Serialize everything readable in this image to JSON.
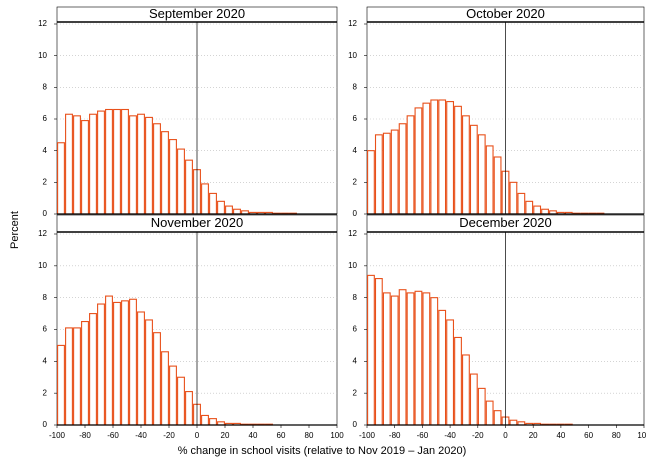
{
  "ylabel": "Percent",
  "xlabel": "% change in school visits (relative to Nov 2019 – Jan 2020)",
  "chart_data": [
    {
      "type": "histogram",
      "title": "September 2020",
      "color": "#e8501a",
      "grid": true,
      "vline": 0,
      "bins": [
        -100,
        -94.29,
        -88.57,
        -82.86,
        -77.14,
        -71.43,
        -65.71,
        -60,
        -54.29,
        -48.57,
        -42.86,
        -37.14,
        -31.43,
        -25.71,
        -20,
        -14.29,
        -8.57,
        -2.86,
        2.86,
        8.57,
        14.29,
        20,
        25.71,
        31.43,
        37.14,
        42.86,
        48.57,
        54.29,
        60,
        65.71,
        71.43,
        77.14,
        82.86,
        88.57,
        94.29,
        100
      ],
      "values": [
        4.5,
        6.3,
        6.2,
        5.9,
        6.3,
        6.5,
        6.6,
        6.6,
        6.6,
        6.2,
        6.3,
        6.1,
        5.7,
        5.2,
        4.7,
        4.1,
        3.4,
        2.8,
        1.9,
        1.3,
        0.8,
        0.5,
        0.3,
        0.2,
        0.1,
        0.1,
        0.1,
        0.05,
        0.05,
        0.05,
        0,
        0,
        0,
        0,
        0
      ],
      "xlim": [
        -100,
        100
      ],
      "ylim": [
        0,
        12
      ],
      "yticks": [
        0,
        2,
        4,
        6,
        8,
        10,
        12
      ]
    },
    {
      "type": "histogram",
      "title": "October 2020",
      "color": "#e8501a",
      "grid": true,
      "vline": 0,
      "bins": [
        -100,
        -94.29,
        -88.57,
        -82.86,
        -77.14,
        -71.43,
        -65.71,
        -60,
        -54.29,
        -48.57,
        -42.86,
        -37.14,
        -31.43,
        -25.71,
        -20,
        -14.29,
        -8.57,
        -2.86,
        2.86,
        8.57,
        14.29,
        20,
        25.71,
        31.43,
        37.14,
        42.86,
        48.57,
        54.29,
        60,
        65.71,
        71.43,
        77.14,
        82.86,
        88.57,
        94.29,
        100
      ],
      "values": [
        4.0,
        5.0,
        5.1,
        5.3,
        5.7,
        6.2,
        6.7,
        7.0,
        7.2,
        7.2,
        7.1,
        6.8,
        6.2,
        5.6,
        5.0,
        4.3,
        3.6,
        2.7,
        2.0,
        1.3,
        0.8,
        0.5,
        0.3,
        0.2,
        0.1,
        0.1,
        0.05,
        0.05,
        0.05,
        0.05,
        0,
        0,
        0,
        0,
        0
      ],
      "xlim": [
        -100,
        100
      ],
      "ylim": [
        0,
        12
      ],
      "yticks": [
        0,
        2,
        4,
        6,
        8,
        10,
        12
      ]
    },
    {
      "type": "histogram",
      "title": "November 2020",
      "color": "#e8501a",
      "grid": true,
      "vline": 0,
      "bins": [
        -100,
        -94.29,
        -88.57,
        -82.86,
        -77.14,
        -71.43,
        -65.71,
        -60,
        -54.29,
        -48.57,
        -42.86,
        -37.14,
        -31.43,
        -25.71,
        -20,
        -14.29,
        -8.57,
        -2.86,
        2.86,
        8.57,
        14.29,
        20,
        25.71,
        31.43,
        37.14,
        42.86,
        48.57,
        54.29,
        60,
        65.71,
        71.43,
        77.14,
        82.86,
        88.57,
        94.29,
        100
      ],
      "values": [
        5.0,
        6.1,
        6.1,
        6.5,
        7.0,
        7.6,
        8.1,
        7.7,
        7.8,
        7.9,
        7.1,
        6.6,
        5.8,
        4.6,
        3.7,
        3.0,
        2.1,
        1.3,
        0.6,
        0.4,
        0.2,
        0.1,
        0.1,
        0.05,
        0.05,
        0.05,
        0.05,
        0,
        0,
        0,
        0,
        0,
        0,
        0,
        0
      ],
      "xlim": [
        -100,
        100
      ],
      "ylim": [
        0,
        12
      ],
      "yticks": [
        0,
        2,
        4,
        6,
        8,
        10,
        12
      ],
      "xticks": [
        -100,
        -80,
        -60,
        -40,
        -20,
        0,
        20,
        40,
        60,
        80,
        100
      ]
    },
    {
      "type": "histogram",
      "title": "December 2020",
      "color": "#e8501a",
      "grid": true,
      "vline": 0,
      "bins": [
        -100,
        -94.29,
        -88.57,
        -82.86,
        -77.14,
        -71.43,
        -65.71,
        -60,
        -54.29,
        -48.57,
        -42.86,
        -37.14,
        -31.43,
        -25.71,
        -20,
        -14.29,
        -8.57,
        -2.86,
        2.86,
        8.57,
        14.29,
        20,
        25.71,
        31.43,
        37.14,
        42.86,
        48.57,
        54.29,
        60,
        65.71,
        71.43,
        77.14,
        82.86,
        88.57,
        94.29,
        100
      ],
      "values": [
        9.4,
        9.2,
        8.3,
        8.1,
        8.5,
        8.3,
        8.4,
        8.3,
        8.0,
        7.2,
        6.6,
        5.5,
        4.4,
        3.2,
        2.3,
        1.5,
        0.9,
        0.5,
        0.3,
        0.2,
        0.1,
        0.1,
        0.05,
        0.05,
        0.05,
        0.05,
        0,
        0,
        0,
        0,
        0,
        0,
        0,
        0,
        0
      ],
      "xlim": [
        -100,
        100
      ],
      "ylim": [
        0,
        12
      ],
      "yticks": [
        0,
        2,
        4,
        6,
        8,
        10,
        12
      ],
      "xticks": [
        -100,
        -80,
        -60,
        -40,
        -20,
        0,
        20,
        40,
        60,
        80,
        100
      ]
    }
  ]
}
